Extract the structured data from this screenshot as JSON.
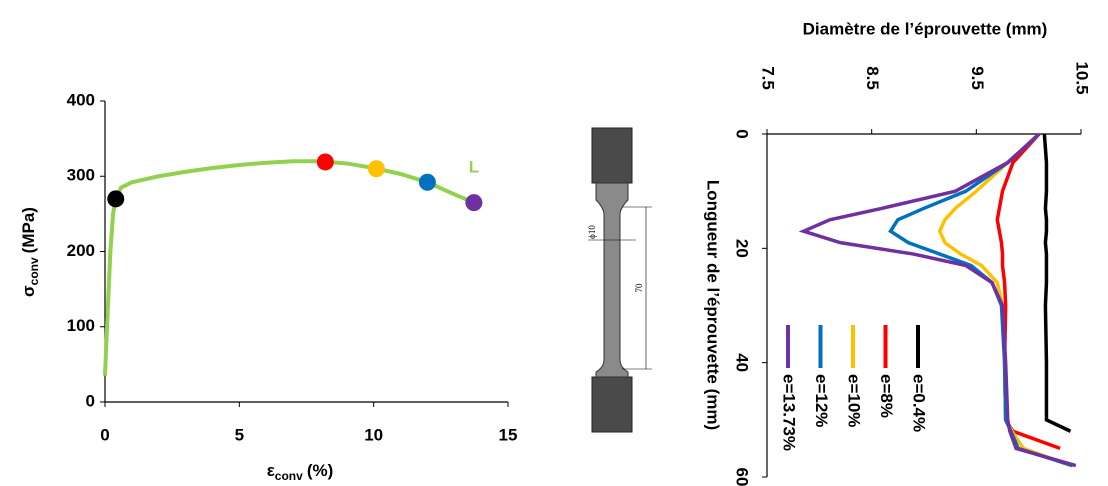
{
  "chart_data": [
    {
      "type": "line",
      "ylim": [
        0,
        400
      ],
      "yticks": [
        0,
        100,
        200,
        300,
        400
      ],
      "xlim": [
        0,
        15
      ],
      "xticks": [
        0,
        5,
        10,
        15
      ],
      "y_label": {
        "symbol": "σ",
        "subscript": "conv",
        "unit": "(MPa)"
      },
      "x_label": {
        "symbol": "ε",
        "subscript": "conv",
        "unit": "(%)"
      },
      "annotation": {
        "text": "L",
        "color": "#92d050"
      },
      "series": [
        {
          "color": "#92d050",
          "x": [
            0,
            0.1,
            0.2,
            0.3,
            0.4,
            0.6,
            1,
            2,
            3,
            4,
            5,
            6,
            7,
            8,
            9,
            10,
            11,
            12,
            13,
            13.73
          ],
          "values": [
            35,
            120,
            200,
            250,
            270,
            285,
            292,
            300,
            306,
            311,
            315,
            318,
            320,
            320,
            317,
            311,
            303,
            292,
            276,
            265
          ]
        }
      ],
      "markers": {
        "x": [
          0.4,
          8.2,
          10.1,
          12,
          13.73
        ],
        "values": [
          270,
          319,
          310,
          292,
          265
        ],
        "colors": [
          "#000000",
          "#ff0000",
          "#ffc000",
          "#0070c0",
          "#7030a0"
        ]
      }
    },
    {
      "type": "profile",
      "xlim": [
        7.5,
        10.5
      ],
      "xticks": [
        7.5,
        8.5,
        9.5,
        10.5
      ],
      "ylim": [
        0,
        60
      ],
      "yticks": [
        0,
        20,
        40,
        60
      ],
      "x_label": "Diamètre de l’éprouvette (mm)",
      "y_label": "Longueur de l’éprouvette  (mm)",
      "length": [
        0,
        5,
        10,
        13,
        15,
        17,
        19,
        21,
        23,
        26,
        30,
        40,
        50,
        52,
        55,
        58
      ],
      "series": [
        {
          "name": "e=0.4%",
          "color": "#000000",
          "values": [
            10.15,
            10.17,
            10.17,
            10.16,
            10.17,
            10.17,
            10.16,
            10.17,
            10.17,
            10.17,
            10.16,
            10.17,
            10.17,
            10.4,
            null,
            null
          ]
        },
        {
          "name": "e=8%",
          "color": "#ff0000",
          "values": [
            10.1,
            9.85,
            9.75,
            9.72,
            9.7,
            9.72,
            9.74,
            9.75,
            9.75,
            9.77,
            9.78,
            9.77,
            9.78,
            9.85,
            10.3,
            null
          ]
        },
        {
          "name": "e=10%",
          "color": "#ffc000",
          "values": [
            10.1,
            9.8,
            9.5,
            9.3,
            9.2,
            9.15,
            9.2,
            9.35,
            9.55,
            9.7,
            9.75,
            9.77,
            9.78,
            9.84,
            9.95,
            10.4
          ]
        },
        {
          "name": "e=12%",
          "color": "#0070c0",
          "values": [
            10.1,
            9.8,
            9.4,
            9.0,
            8.75,
            8.68,
            8.85,
            9.15,
            9.45,
            9.65,
            9.74,
            9.77,
            9.78,
            9.83,
            9.9,
            10.42
          ]
        },
        {
          "name": "e=13.73%",
          "color": "#7030a0",
          "values": [
            10.1,
            9.8,
            9.3,
            8.6,
            8.1,
            7.85,
            8.2,
            8.9,
            9.4,
            9.65,
            9.75,
            9.78,
            9.8,
            9.82,
            9.88,
            10.45
          ]
        }
      ]
    }
  ],
  "specimen": {
    "diameter_label": "ϕ10",
    "length_label": "70"
  }
}
